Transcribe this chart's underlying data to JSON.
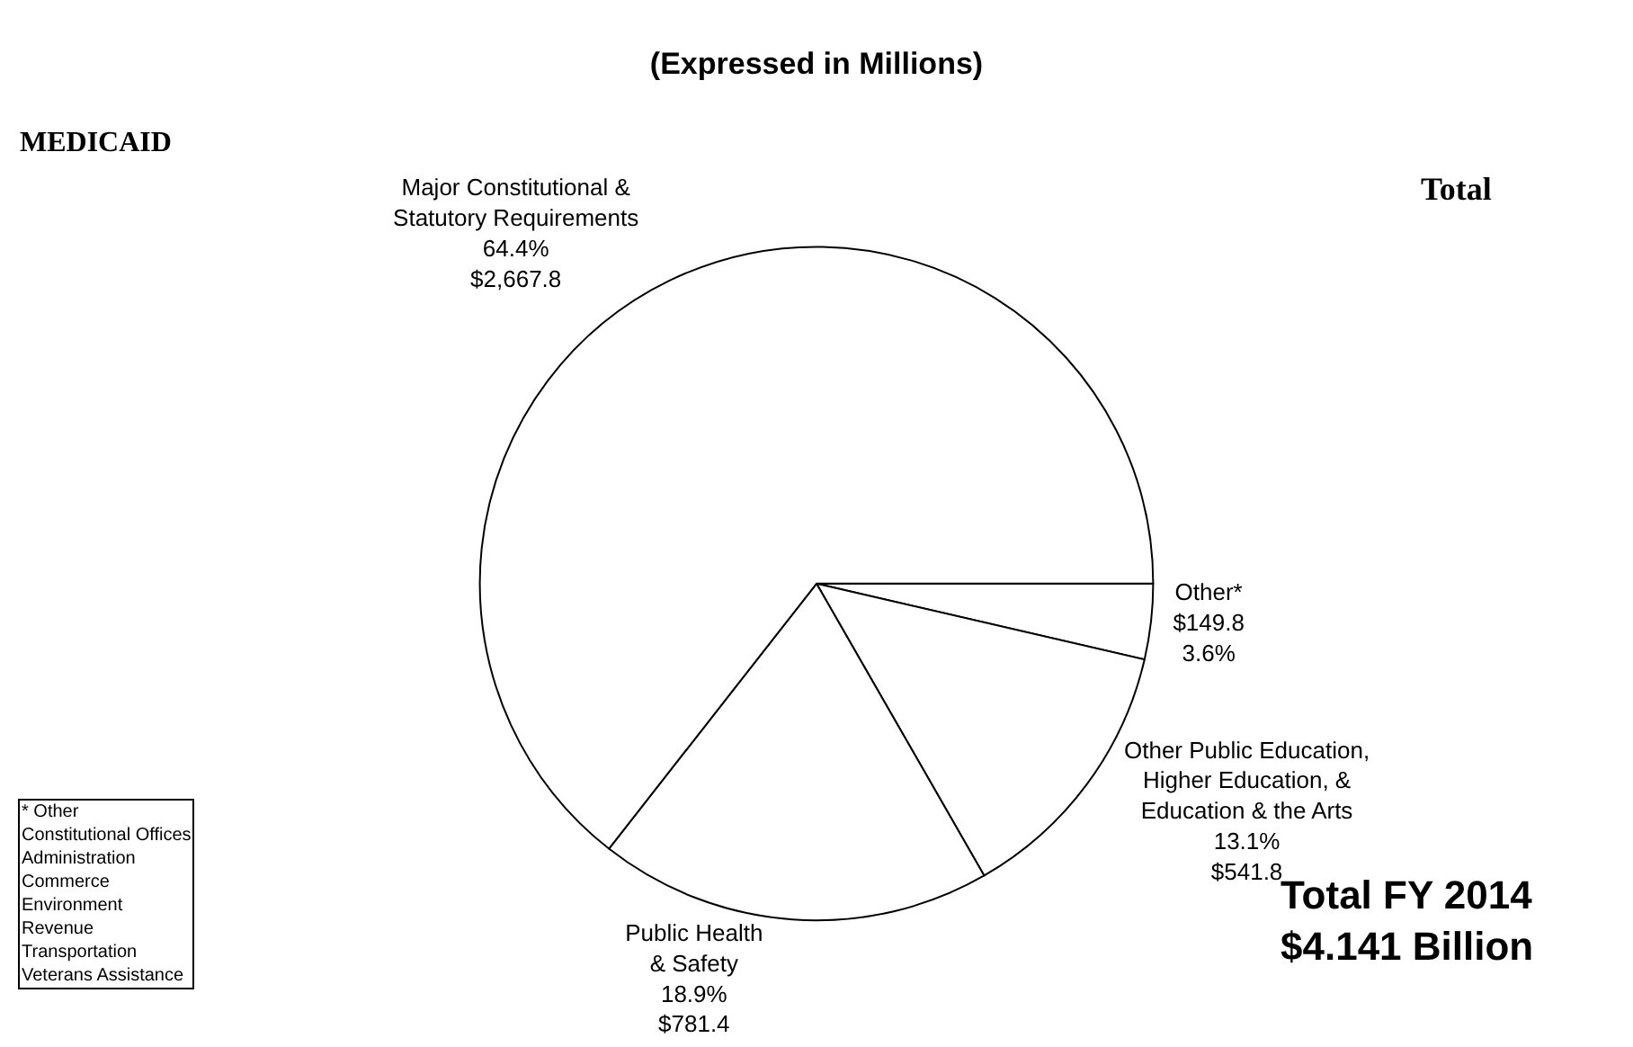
{
  "chart_data": {
    "type": "pie",
    "title": "(Expressed in Millions)",
    "categories": [
      "Other*",
      "Other Public Education,\nHigher Education, &\nEducation & the Arts",
      "Public Health\n& Safety",
      "Major Constitutional &\nStatutory Requirements"
    ],
    "values": [
      149.8,
      541.8,
      781.4,
      2667.8
    ],
    "value_labels": [
      "$149.8\n3.6%",
      "13.1%\n$541.8",
      "18.9%\n$781.4",
      "64.4%\n$2,667.8"
    ],
    "colors": [
      "#ffffff",
      "#ffffff",
      "#ffffff",
      "#ffffff"
    ],
    "legend": false,
    "annotations": [
      "MEDICAID",
      "Total",
      "Total FY 2014\n$4.141 Billion",
      "* Other\nConstitutional Offices\nAdministration\nCommerce\nEnvironment\nRevenue\nTransportation\nVeterans Assistance"
    ]
  }
}
